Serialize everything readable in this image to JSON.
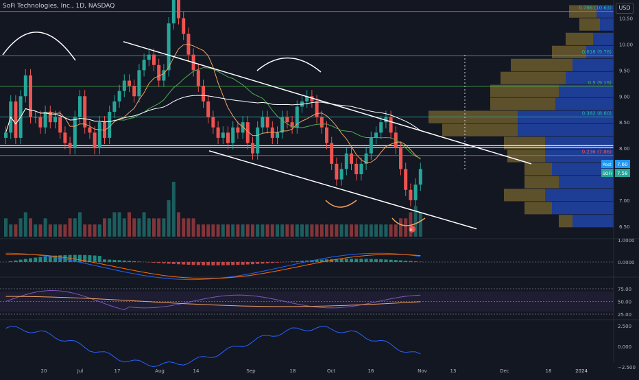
{
  "header": {
    "symbol": "SoFi Technologies, Inc., 1D, NASDAQ",
    "currency": "USD"
  },
  "colors": {
    "background": "#131722",
    "up": "#26a69a",
    "down": "#ef5350",
    "volume_profile_up": "#2144a8",
    "volume_profile_down": "#6b5c2e",
    "trendline": "#ffffff",
    "text": "#b2b5be"
  },
  "chart_data": [
    {
      "type": "candlestick",
      "title": "SoFi Technologies, Inc., 1D, NASDAQ",
      "ylim": [
        6.3,
        10.85
      ],
      "price_axis_ticks": [
        "10.50",
        "10.00",
        "9.50",
        "9.00",
        "8.50",
        "8.00",
        "7.50",
        "7.00",
        "6.50"
      ],
      "time_axis_ticks": [
        "20",
        "Jul",
        "17",
        "Aug",
        "14",
        "Sep",
        "18",
        "Oct",
        "16",
        "Nov",
        "13",
        "Dec",
        "18",
        "2024"
      ],
      "fib_levels": [
        {
          "label": "0.786 (10.63)",
          "value": 10.63
        },
        {
          "label": "0.618 (9.78)",
          "value": 9.78
        },
        {
          "label": "0.5 (9.19)",
          "value": 9.19
        },
        {
          "label": "0.382 (8.60)",
          "value": 8.6
        },
        {
          "label": "0.236 (7.86)",
          "value": 7.86
        }
      ],
      "price_labels": [
        {
          "label": "Post",
          "value": "7.60"
        },
        {
          "label": "SOFI",
          "value": "7.58"
        }
      ],
      "series": [
        {
          "name": "SOFI",
          "close": [
            8.3,
            8.9,
            8.2,
            9.0,
            9.4,
            8.6,
            8.6,
            8.4,
            8.7,
            8.5,
            8.6,
            8.3,
            8.1,
            8.0,
            8.6,
            9.0,
            8.4,
            8.3,
            8.0,
            8.5,
            8.2,
            8.7,
            8.9,
            9.1,
            9.3,
            9.2,
            9.0,
            9.5,
            9.7,
            9.8,
            9.6,
            9.3,
            9.5,
            10.4,
            10.9,
            10.5,
            10.2,
            9.8,
            9.5,
            9.2,
            8.9,
            8.6,
            8.4,
            8.2,
            8.3,
            8.1,
            8.4,
            8.3,
            8.5,
            8.1,
            7.9,
            8.4,
            8.6,
            8.4,
            8.2,
            8.3,
            8.6,
            8.5,
            8.4,
            8.8,
            8.9,
            9.0,
            8.9,
            8.6,
            8.4,
            8.1,
            7.7,
            7.4,
            7.6,
            7.9,
            7.7,
            7.5,
            7.7,
            7.9,
            8.2,
            8.3,
            8.5,
            8.6,
            8.3,
            8.0,
            7.6,
            7.2,
            7.0,
            7.3,
            7.6
          ],
          "volume": [
            3,
            2,
            2,
            3,
            4,
            3,
            2,
            2,
            3,
            2,
            2,
            2,
            2,
            3,
            3,
            4,
            2,
            2,
            2,
            2,
            3,
            3,
            4,
            4,
            3,
            4,
            3,
            3,
            4,
            3,
            3,
            3,
            3,
            6,
            9,
            4,
            3,
            3,
            3,
            2,
            2,
            2,
            2,
            2,
            2,
            2,
            2,
            2,
            2,
            2,
            2,
            2,
            2,
            2,
            2,
            2,
            2,
            2,
            2,
            2,
            2,
            2,
            2,
            2,
            2,
            2,
            2,
            2,
            2,
            2,
            2,
            2,
            2,
            2,
            2,
            2,
            2,
            2,
            2,
            2,
            3,
            3,
            4,
            5,
            4
          ]
        }
      ],
      "annotations": [
        "E"
      ]
    },
    {
      "type": "macd",
      "axis_ticks": [
        "1.0000",
        "0.0000"
      ]
    },
    {
      "type": "rsi",
      "axis_ticks": [
        "75.00",
        "50.00",
        "25.00"
      ]
    },
    {
      "type": "oscillator",
      "axis_ticks": [
        "2.500",
        "0.000",
        "−2.500"
      ]
    }
  ]
}
